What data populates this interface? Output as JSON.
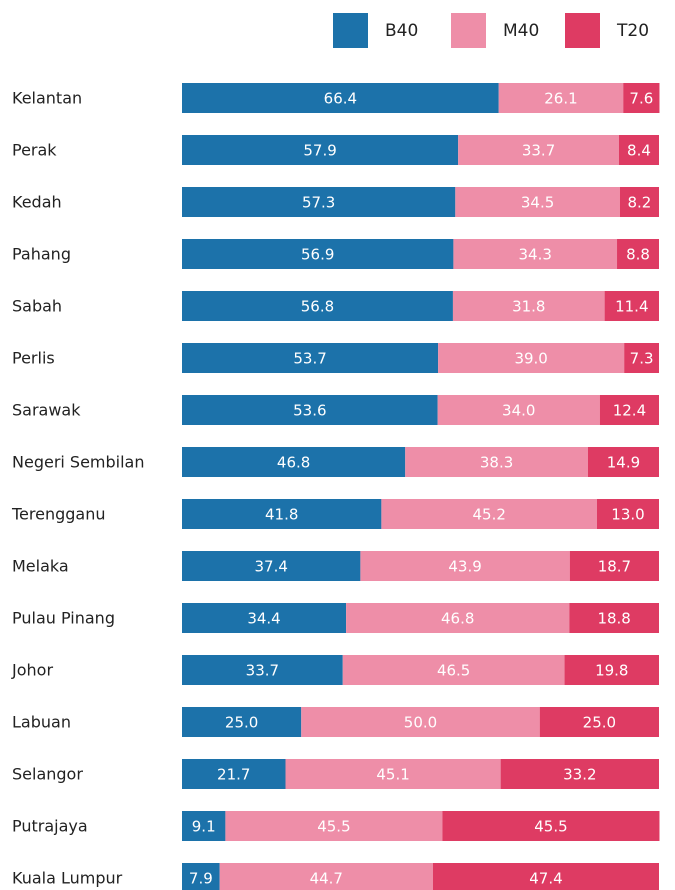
{
  "chart_data": {
    "type": "bar",
    "orientation": "horizontal",
    "stacked": true,
    "legend": "top",
    "xlim": [
      0,
      100
    ],
    "categories": [
      "Kelantan",
      "Perak",
      "Kedah",
      "Pahang",
      "Sabah",
      "Perlis",
      "Sarawak",
      "Negeri Sembilan",
      "Terengganu",
      "Melaka",
      "Pulau Pinang",
      "Johor",
      "Labuan",
      "Selangor",
      "Putrajaya",
      "Kuala Lumpur"
    ],
    "series": [
      {
        "name": "B40",
        "color": "#1c72aa",
        "values": [
          66.4,
          57.9,
          57.3,
          56.9,
          56.8,
          53.7,
          53.6,
          46.8,
          41.8,
          37.4,
          34.4,
          33.7,
          25,
          21.7,
          9.1,
          7.9
        ],
        "value_labels": [
          "66.4",
          "57.9",
          "57.3",
          "56.9",
          "56.8",
          "53.7",
          "53.6",
          "46.8",
          "41.8",
          "37.4",
          "34.4",
          "33.7",
          "25.0",
          "21.7",
          "9.1",
          "7.9"
        ]
      },
      {
        "name": "M40",
        "color": "#ee8ea8",
        "values": [
          26.1,
          33.7,
          34.5,
          34.3,
          31.8,
          39,
          34,
          38.3,
          45.2,
          43.9,
          46.8,
          46.5,
          50,
          45.1,
          45.5,
          44.7
        ],
        "value_labels": [
          "26.1",
          "33.7",
          "34.5",
          "34.3",
          "31.8",
          "39.0",
          "34.0",
          "38.3",
          "45.2",
          "43.9",
          "46.8",
          "46.5",
          "50.0",
          "45.1",
          "45.5",
          "44.7"
        ]
      },
      {
        "name": "T20",
        "color": "#de3b63",
        "values": [
          7.6,
          8.4,
          8.2,
          8.8,
          11.4,
          7.3,
          12.4,
          14.9,
          13,
          18.7,
          18.8,
          19.8,
          25,
          33.2,
          45.5,
          47.4
        ],
        "value_labels": [
          "7.6",
          "8.4",
          "8.2",
          "8.8",
          "11.4",
          "7.3",
          "12.4",
          "14.9",
          "13.0",
          "18.7",
          "18.8",
          "19.8",
          "25.0",
          "33.2",
          "45.5",
          "47.4"
        ]
      }
    ]
  }
}
